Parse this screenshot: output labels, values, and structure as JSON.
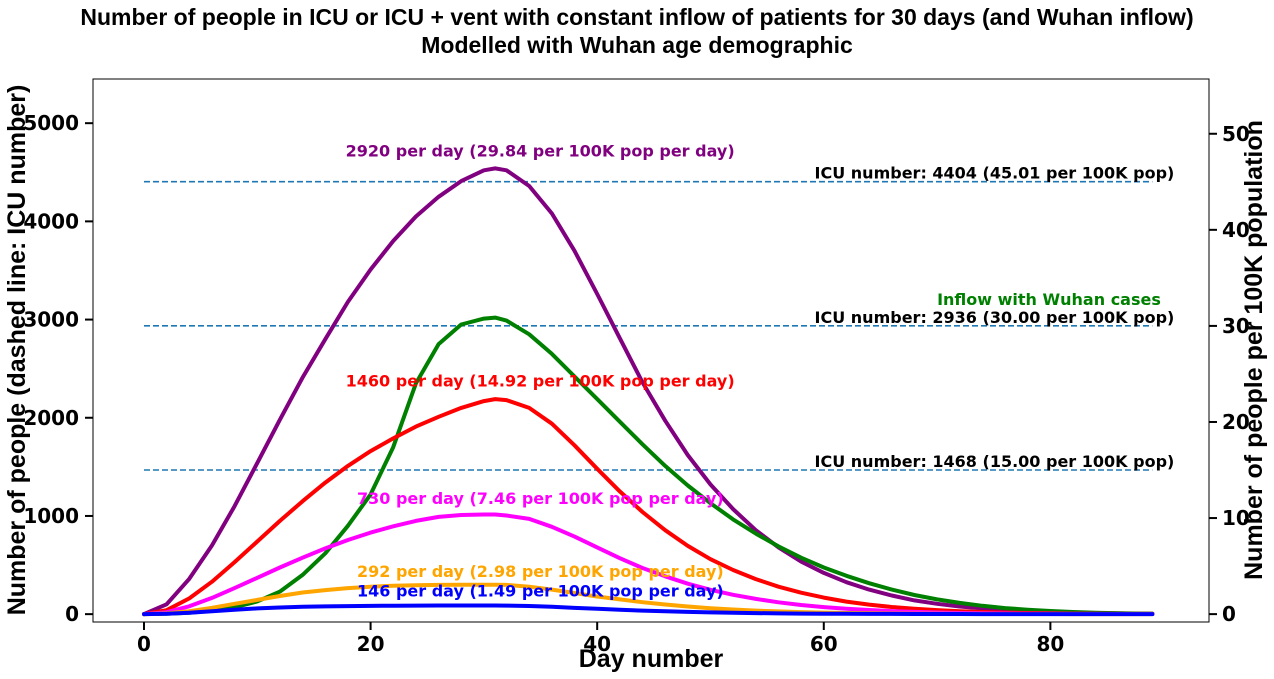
{
  "chart_data": {
    "type": "line",
    "title": "Number of people in ICU or ICU + vent with constant inflow of patients for 30 days (and Wuhan inflow)",
    "subtitle": "Modelled with Wuhan age demographic",
    "xlabel": "Day number",
    "ylabel": "Number of people (dashed line: ICU number)",
    "ylabel_right": "Number of people per 100K population",
    "xlim": [
      -4.5,
      94
    ],
    "ylim": [
      -80,
      5450
    ],
    "ylim_right": [
      -0.82,
      55.7
    ],
    "xticks": [
      0,
      20,
      40,
      60,
      80
    ],
    "yticks": [
      0,
      1000,
      2000,
      3000,
      4000,
      5000
    ],
    "yticks_right": [
      0,
      10,
      20,
      30,
      40,
      50
    ],
    "x": [
      0,
      2,
      4,
      6,
      8,
      10,
      12,
      14,
      16,
      18,
      20,
      22,
      24,
      26,
      28,
      30,
      31,
      32,
      34,
      36,
      38,
      40,
      42,
      44,
      46,
      48,
      50,
      52,
      54,
      56,
      58,
      60,
      62,
      64,
      66,
      68,
      70,
      72,
      74,
      76,
      78,
      80,
      82,
      84,
      86,
      88,
      89
    ],
    "series": [
      {
        "name": "2920 per day (29.84 per 100K pop per day)",
        "color": "#800080",
        "values": [
          0,
          100,
          360,
          700,
          1100,
          1540,
          1980,
          2410,
          2800,
          3180,
          3510,
          3800,
          4050,
          4250,
          4410,
          4520,
          4540,
          4520,
          4360,
          4080,
          3700,
          3260,
          2810,
          2360,
          1970,
          1620,
          1320,
          1070,
          855,
          680,
          535,
          420,
          325,
          250,
          190,
          140,
          105,
          78,
          58,
          42,
          31,
          22,
          16,
          11,
          8,
          5,
          4
        ]
      },
      {
        "name": "Inflow with Wuhan cases",
        "color": "#008000",
        "values": [
          0,
          5,
          15,
          35,
          70,
          130,
          230,
          400,
          620,
          900,
          1220,
          1700,
          2350,
          2750,
          2950,
          3010,
          3020,
          2990,
          2850,
          2650,
          2420,
          2190,
          1960,
          1730,
          1510,
          1310,
          1130,
          965,
          820,
          690,
          575,
          475,
          390,
          315,
          250,
          195,
          150,
          115,
          85,
          62,
          45,
          32,
          22,
          15,
          10,
          6,
          5
        ]
      },
      {
        "name": "1460 per day (14.92 per 100K pop per day)",
        "color": "#ff0000",
        "values": [
          0,
          40,
          160,
          330,
          530,
          740,
          950,
          1150,
          1340,
          1510,
          1660,
          1790,
          1910,
          2010,
          2100,
          2170,
          2190,
          2180,
          2100,
          1940,
          1720,
          1480,
          1250,
          1040,
          855,
          695,
          560,
          450,
          357,
          280,
          218,
          168,
          128,
          97,
          73,
          55,
          41,
          30,
          22,
          16,
          12,
          9,
          6,
          4,
          3,
          2,
          2
        ]
      },
      {
        "name": "730 per day (7.46 per 100K pop per day)",
        "color": "#ff00ff",
        "values": [
          0,
          20,
          80,
          165,
          265,
          370,
          475,
          575,
          670,
          755,
          830,
          895,
          950,
          990,
          1010,
          1015,
          1015,
          1005,
          970,
          890,
          790,
          680,
          570,
          470,
          385,
          310,
          248,
          197,
          155,
          121,
          93,
          72,
          55,
          42,
          31,
          23,
          17,
          12,
          9,
          7,
          5,
          4,
          3,
          2,
          1,
          1,
          1
        ]
      },
      {
        "name": "292 per day (2.98 per 100K pop per day)",
        "color": "#ffa500",
        "values": [
          0,
          8,
          30,
          65,
          105,
          145,
          185,
          220,
          245,
          265,
          280,
          290,
          295,
          298,
          300,
          300,
          300,
          298,
          280,
          250,
          215,
          180,
          150,
          122,
          98,
          78,
          61,
          47,
          36,
          28,
          21,
          16,
          12,
          9,
          7,
          5,
          4,
          3,
          2,
          1,
          1,
          1,
          0,
          0,
          0,
          0,
          0
        ]
      },
      {
        "name": "146 per day (1.49 per 100K pop per day)",
        "color": "#0000ff",
        "values": [
          0,
          4,
          15,
          30,
          45,
          58,
          68,
          75,
          79,
          82,
          84,
          86,
          87,
          88,
          88,
          88,
          88,
          87,
          83,
          75,
          64,
          54,
          44,
          36,
          29,
          23,
          18,
          14,
          11,
          8,
          6,
          5,
          4,
          3,
          2,
          1,
          1,
          1,
          0,
          0,
          0,
          0,
          0,
          0,
          0,
          0,
          0
        ]
      }
    ],
    "icu_lines": [
      {
        "value": 4404,
        "label": "ICU number: 4404 (45.01 per 100K pop)"
      },
      {
        "value": 2936,
        "label": "ICU number: 2936 (30.00 per 100K pop)"
      },
      {
        "value": 1468,
        "label": "ICU number: 1468 (15.00 per 100K pop)"
      }
    ],
    "annotations": [
      {
        "text": "2920 per day (29.84 per 100K pop per day)",
        "x": 17.8,
        "y": 4660,
        "color": "#800080"
      },
      {
        "text": "1460 per day (14.92 per 100K pop per day)",
        "x": 17.8,
        "y": 2320,
        "color": "#ff0000"
      },
      {
        "text": "730 per day (7.46 per 100K pop per day)",
        "x": 18.8,
        "y": 1120,
        "color": "#ff00ff"
      },
      {
        "text": "292 per day (2.98 per 100K pop per day)",
        "x": 18.8,
        "y": 380,
        "color": "#ffa500"
      },
      {
        "text": "146 per day (1.49 per 100K pop per day)",
        "x": 18.8,
        "y": 180,
        "color": "#0000ff"
      },
      {
        "text": "Inflow with Wuhan cases",
        "x": 70,
        "y": 3150,
        "color": "#008000"
      }
    ],
    "icu_line_color": "#1f77b4",
    "legend": "none",
    "grid": false
  }
}
